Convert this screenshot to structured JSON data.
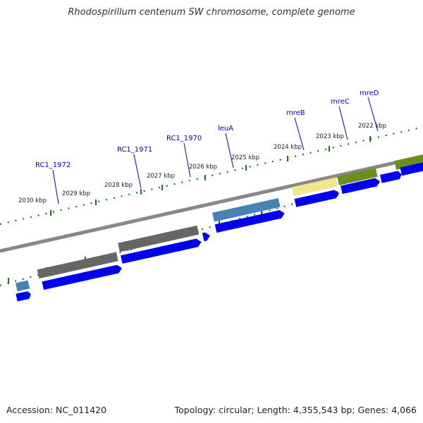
{
  "title": "Rhodospirillum centenum SW chromosome, complete genome",
  "footer": {
    "accession": "Accession: NC_011420",
    "stats": "Topology: circular; Length: 4,355,543 bp; Genes: 4,066"
  },
  "colors": {
    "gene_arrow": "#0000ee",
    "tick": "#1a7a1a",
    "backbone": "#888888",
    "label_line": "#0000cc",
    "cog_gray": "#666666",
    "cog_blue": "#4682b4",
    "cog_yellow": "#f0e68c",
    "cog_olive": "#6b8e23"
  },
  "kbp_labels": [
    "2030 kbp",
    "2029 kbp",
    "2028 kbp",
    "2027 kbp",
    "2026 kbp",
    "2025 kbp",
    "2024 kbp",
    "2023 kbp",
    "2022 kbp"
  ],
  "gene_labels": [
    "RC1_1972",
    "RC1_1971",
    "RC1_1970",
    "leuA",
    "mreB",
    "mreC",
    "mreD"
  ]
}
